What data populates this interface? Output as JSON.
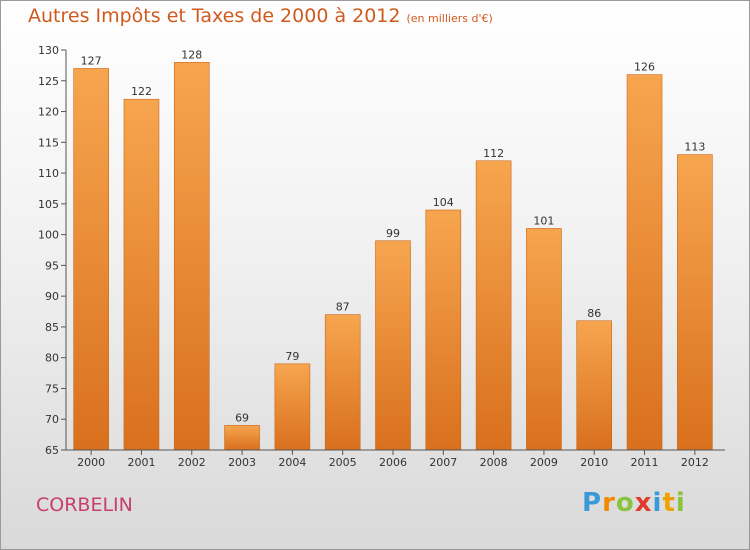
{
  "title": "Autres Impôts et Taxes de 2000 à 2012",
  "subtitle": "(en milliers d'€)",
  "commune": "CORBELIN",
  "logo": {
    "letters": [
      {
        "char": "P",
        "color": "#3a9ad9"
      },
      {
        "char": "r",
        "color": "#f08a00"
      },
      {
        "char": "o",
        "color": "#8ac43f"
      },
      {
        "char": "x",
        "color": "#e23a2c"
      },
      {
        "char": "i",
        "color": "#3a9ad9"
      },
      {
        "char": "t",
        "color": "#f0a000"
      },
      {
        "char": "i",
        "color": "#8ac43f"
      }
    ]
  },
  "colors": {
    "bar_top": "#f7a54f",
    "bar_bottom": "#d9701d",
    "title": "#d05a1e",
    "commune": "#c8406a"
  },
  "chart_data": {
    "type": "bar",
    "categories": [
      "2000",
      "2001",
      "2002",
      "2003",
      "2004",
      "2005",
      "2006",
      "2007",
      "2008",
      "2009",
      "2010",
      "2011",
      "2012"
    ],
    "values": [
      127,
      122,
      128,
      69,
      79,
      87,
      99,
      104,
      112,
      101,
      86,
      126,
      113
    ],
    "ylim": [
      65,
      130
    ],
    "yticks": [
      65,
      70,
      75,
      80,
      85,
      90,
      95,
      100,
      105,
      110,
      115,
      120,
      125,
      130
    ],
    "grid": false
  }
}
